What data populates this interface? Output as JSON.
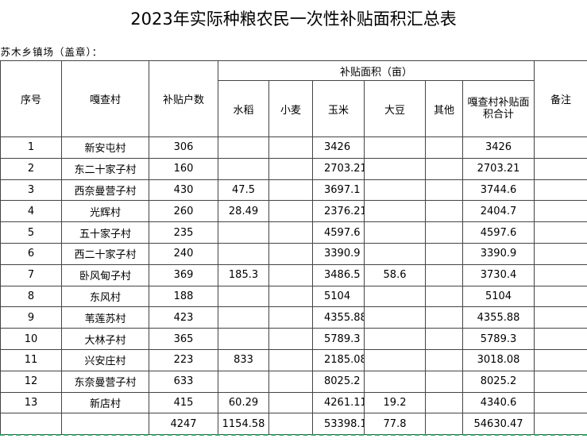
{
  "title": "2023年实际种粮农民一次性补贴面积汇总表",
  "unit_label": "苏木乡镇场（盖章）：",
  "headers": {
    "seq": "序号",
    "village": "嘎查村",
    "households": "补贴户数",
    "area_group": "补贴面积（亩）",
    "rice": "水稻",
    "wheat": "小麦",
    "corn": "玉米",
    "soybean": "大豆",
    "other": "其他",
    "village_total": "嘎查村补贴面积合计",
    "remarks": "备注"
  },
  "rows": [
    {
      "seq": "1",
      "village": "新安屯村",
      "households": "306",
      "rice": "",
      "wheat": "",
      "corn": "3426",
      "soybean": "",
      "other": "",
      "total": "3426",
      "remarks": ""
    },
    {
      "seq": "2",
      "village": "东二十家子村",
      "households": "160",
      "rice": "",
      "wheat": "",
      "corn": "2703.21",
      "soybean": "",
      "other": "",
      "total": "2703.21",
      "remarks": ""
    },
    {
      "seq": "3",
      "village": "西奈曼营子村",
      "households": "430",
      "rice": "47.5",
      "wheat": "",
      "corn": "3697.1",
      "soybean": "",
      "other": "",
      "total": "3744.6",
      "remarks": ""
    },
    {
      "seq": "4",
      "village": "光辉村",
      "households": "260",
      "rice": "28.49",
      "wheat": "",
      "corn": "2376.21",
      "soybean": "",
      "other": "",
      "total": "2404.7",
      "remarks": ""
    },
    {
      "seq": "5",
      "village": "五十家子村",
      "households": "235",
      "rice": "",
      "wheat": "",
      "corn": "4597.6",
      "soybean": "",
      "other": "",
      "total": "4597.6",
      "remarks": ""
    },
    {
      "seq": "6",
      "village": "西二十家子村",
      "households": "240",
      "rice": "",
      "wheat": "",
      "corn": "3390.9",
      "soybean": "",
      "other": "",
      "total": "3390.9",
      "remarks": ""
    },
    {
      "seq": "7",
      "village": "卧风甸子村",
      "households": "369",
      "rice": "185.3",
      "wheat": "",
      "corn": "3486.5",
      "soybean": "58.6",
      "other": "",
      "total": "3730.4",
      "remarks": ""
    },
    {
      "seq": "8",
      "village": "东风村",
      "households": "188",
      "rice": "",
      "wheat": "",
      "corn": "5104",
      "soybean": "",
      "other": "",
      "total": "5104",
      "remarks": ""
    },
    {
      "seq": "9",
      "village": "苇莲苏村",
      "households": "423",
      "rice": "",
      "wheat": "",
      "corn": "4355.88",
      "soybean": "",
      "other": "",
      "total": "4355.88",
      "remarks": ""
    },
    {
      "seq": "10",
      "village": "大林子村",
      "households": "365",
      "rice": "",
      "wheat": "",
      "corn": "5789.3",
      "soybean": "",
      "other": "",
      "total": "5789.3",
      "remarks": ""
    },
    {
      "seq": "11",
      "village": "兴安庄村",
      "households": "223",
      "rice": "833",
      "wheat": "",
      "corn": "2185.08",
      "soybean": "",
      "other": "",
      "total": "3018.08",
      "remarks": ""
    },
    {
      "seq": "12",
      "village": "东奈曼营子村",
      "households": "633",
      "rice": "",
      "wheat": "",
      "corn": "8025.2",
      "soybean": "",
      "other": "",
      "total": "8025.2",
      "remarks": ""
    },
    {
      "seq": "13",
      "village": "新店村",
      "households": "415",
      "rice": "60.29",
      "wheat": "",
      "corn": "4261.11",
      "soybean": "19.2",
      "other": "",
      "total": "4340.6",
      "remarks": ""
    }
  ],
  "totals": {
    "households": "4247",
    "rice": "1154.58",
    "wheat": "",
    "corn": "53398.1",
    "soybean": "77.8",
    "other": "",
    "total": "54630.47"
  }
}
